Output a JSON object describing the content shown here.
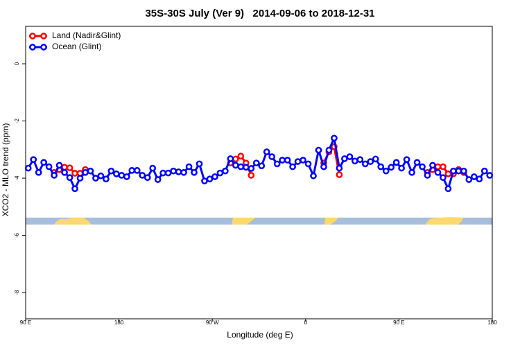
{
  "chart_data": {
    "type": "line",
    "title": "35S-30S July (Ver 9)   2014-09-06 to 2018-12-31",
    "x_label": "Longitude (deg E)",
    "y_label": "XCO2 - MLO trend (ppm)",
    "x": [
      92.5,
      97.5,
      102.5,
      107.5,
      112.5,
      117.5,
      122.5,
      127.5,
      132.5,
      137.5,
      142.5,
      147.5,
      152.5,
      157.5,
      162.5,
      167.5,
      172.5,
      177.5,
      182.5,
      187.5,
      192.5,
      197.5,
      202.5,
      207.5,
      212.5,
      217.5,
      222.5,
      227.5,
      232.5,
      237.5,
      242.5,
      247.5,
      252.5,
      257.5,
      262.5,
      267.5,
      272.5,
      277.5,
      282.5,
      287.5,
      292.5,
      297.5,
      302.5,
      307.5,
      312.5,
      317.5,
      322.5,
      327.5,
      332.5,
      337.5,
      342.5,
      347.5,
      352.5,
      357.5,
      362.5,
      367.5,
      372.5,
      377.5,
      382.5,
      387.5,
      392.5,
      397.5,
      402.5,
      407.5,
      412.5,
      417.5,
      422.5,
      427.5,
      432.5,
      437.5,
      442.5,
      447.5,
      452.5,
      457.5,
      462.5,
      467.5,
      472.5,
      477.5,
      482.5,
      487.5,
      492.5,
      497.5,
      502.5,
      507.5,
      512.5,
      517.5,
      522.5,
      527.5,
      532.5,
      537.5
    ],
    "series": [
      {
        "name": "Land (Nadir&Glint)",
        "color": "#ff0000",
        "values": [
          null,
          null,
          null,
          null,
          null,
          -3.8,
          -3.7,
          -3.62,
          -3.64,
          -3.83,
          -3.83,
          -3.7,
          null,
          null,
          null,
          null,
          null,
          null,
          null,
          null,
          null,
          null,
          null,
          null,
          null,
          null,
          null,
          null,
          null,
          null,
          null,
          null,
          null,
          null,
          null,
          null,
          null,
          null,
          null,
          -3.47,
          -3.33,
          -3.23,
          -3.47,
          -3.9,
          null,
          null,
          null,
          null,
          null,
          null,
          null,
          null,
          null,
          null,
          null,
          null,
          null,
          -3.47,
          -3.08,
          -2.9,
          -3.88,
          null,
          null,
          null,
          null,
          null,
          null,
          null,
          null,
          null,
          null,
          null,
          null,
          null,
          null,
          null,
          null,
          -3.8,
          -3.7,
          -3.6,
          -3.6,
          -3.85,
          -3.85,
          -3.7,
          -3.8,
          null,
          null,
          null,
          null,
          null
        ]
      },
      {
        "name": "Ocean (Glint)",
        "color": "#0000ff",
        "values": [
          -3.65,
          -3.35,
          -3.8,
          -3.45,
          -3.6,
          -3.9,
          -3.55,
          -3.8,
          -3.98,
          -4.37,
          -4.0,
          -3.8,
          -3.75,
          -4.0,
          -3.92,
          -4.03,
          -3.75,
          -3.85,
          -3.9,
          -3.95,
          -3.73,
          -3.73,
          -3.9,
          -3.98,
          -3.65,
          -4.05,
          -3.82,
          -3.82,
          -3.75,
          -3.78,
          -3.8,
          -3.6,
          -3.8,
          -3.5,
          -4.1,
          -4.03,
          -3.95,
          -3.82,
          -3.75,
          -3.32,
          -3.55,
          -3.6,
          -3.62,
          -3.66,
          -3.47,
          -3.57,
          -3.08,
          -3.25,
          -3.5,
          -3.37,
          -3.37,
          -3.6,
          -3.42,
          -3.37,
          -3.5,
          -3.92,
          -3.02,
          -3.6,
          -3.02,
          -2.6,
          -3.65,
          -3.32,
          -3.25,
          -3.4,
          -3.35,
          -3.5,
          -3.42,
          -3.33,
          -3.6,
          -3.75,
          -3.62,
          -3.45,
          -3.65,
          -3.35,
          -3.8,
          -3.45,
          -3.6,
          -3.9,
          -3.55,
          -3.8,
          -3.98,
          -4.37,
          -3.75,
          -3.75,
          -3.75,
          -4.05,
          -3.95,
          -4.03,
          -3.75,
          -3.9
        ]
      }
    ],
    "xlim": [
      90,
      540
    ],
    "xticks": [
      {
        "value": 90,
        "label": "90 E"
      },
      180,
      {
        "value": 270,
        "label": "90 W"
      },
      {
        "value": 360,
        "label": "0"
      },
      {
        "value": 450,
        "label": "90 E"
      },
      {
        "value": 540,
        "label": "180"
      }
    ],
    "ylim": [
      -8.92,
      1.31
    ],
    "yticks": [
      0,
      -2,
      -4,
      -6,
      -8
    ],
    "legend": "top-left"
  }
}
